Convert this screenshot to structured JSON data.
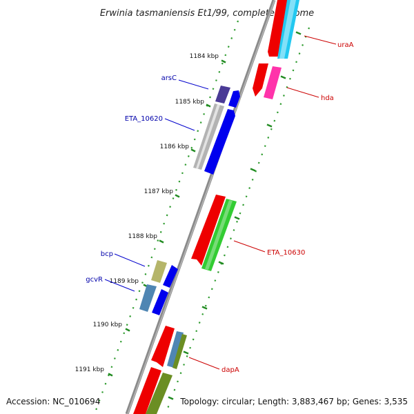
{
  "title": "Erwinia tasmaniensis Et1/99, complete genome",
  "footer": {
    "accession": "Accession: NC_010694",
    "topology": "Topology: circular; Length: 3,883,467 bp; Genes: 3,535"
  },
  "colors": {
    "forward_label": "#cc0000",
    "reverse_label": "#0000aa",
    "backbone": "#7a7a7a",
    "tick": "#228b22",
    "dot": "#2e9b2e"
  },
  "ticks": [
    {
      "label": "1184 kbp"
    },
    {
      "label": "1185 kbp"
    },
    {
      "label": "1186 kbp"
    },
    {
      "label": "1187 kbp"
    },
    {
      "label": "1188 kbp"
    },
    {
      "label": "1189 kbp"
    },
    {
      "label": "1190 kbp"
    },
    {
      "label": "1191 kbp"
    }
  ],
  "genes": [
    {
      "name": "uraA",
      "strand": "forward"
    },
    {
      "name": "hda",
      "strand": "forward"
    },
    {
      "name": "arsC",
      "strand": "reverse"
    },
    {
      "name": "ETA_10620",
      "strand": "reverse"
    },
    {
      "name": "ETA_10630",
      "strand": "forward"
    },
    {
      "name": "bcp",
      "strand": "reverse"
    },
    {
      "name": "gcvR",
      "strand": "reverse"
    },
    {
      "name": "dapA",
      "strand": "forward"
    }
  ]
}
